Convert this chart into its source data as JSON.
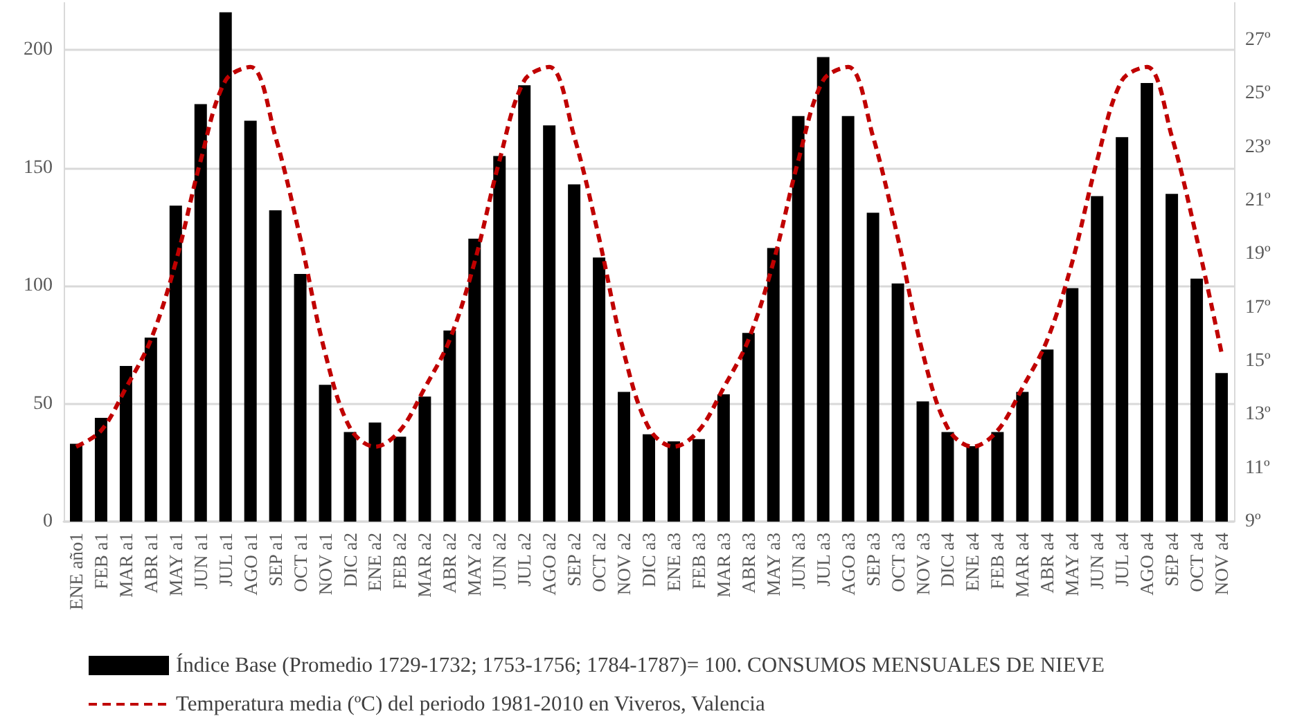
{
  "chart_data": {
    "type": "bar",
    "categories": [
      "ENE año1",
      "FEB a1",
      "MAR a1",
      "ABR a1",
      "MAY a1",
      "JUN a1",
      "JUL a1",
      "AGO a1",
      "SEP a1",
      "OCT a1",
      "NOV a1",
      "DIC a2",
      "ENE a2",
      "FEB a2",
      "MAR a2",
      "ABR a2",
      "MAY a2",
      "JUN a2",
      "JUL a2",
      "AGO a2",
      "SEP a2",
      "OCT a2",
      "NOV a2",
      "DIC a3",
      "ENE a3",
      "FEB a3",
      "MAR a3",
      "ABR a3",
      "MAY a3",
      "JUN a3",
      "JUL a3",
      "AGO a3",
      "SEP a3",
      "OCT a3",
      "NOV a3",
      "DIC a4",
      "ENE a4",
      "FEB a4",
      "MAR a4",
      "ABR a4",
      "MAY a4",
      "JUN a4",
      "JUL a4",
      "AGO a4",
      "SEP a4",
      "OCT a4",
      "NOV a4"
    ],
    "series": [
      {
        "name": "Índice Base (Promedio 1729-1732; 1753-1756; 1784-1787)= 100. CONSUMOS MENSUALES DE NIEVE",
        "color": "#000000",
        "values": [
          33,
          44,
          66,
          78,
          134,
          177,
          216,
          170,
          132,
          105,
          58,
          38,
          42,
          36,
          53,
          81,
          120,
          155,
          185,
          168,
          143,
          112,
          55,
          37,
          34,
          35,
          54,
          80,
          116,
          172,
          197,
          172,
          131,
          101,
          51,
          38,
          32,
          38,
          55,
          73,
          99,
          138,
          163,
          186,
          139,
          103,
          63
        ]
      },
      {
        "name": "Temperatura media (ºC) del periodo 1981-2010 en Viveros, Valencia",
        "type": "line",
        "axis": "y2",
        "color": "#c00000",
        "line_style": "dashed",
        "marker": "none",
        "values": [
          11.8,
          12.4,
          14.0,
          15.8,
          18.7,
          22.5,
          25.5,
          26.0,
          23.4,
          19.6,
          15.3,
          12.5,
          11.8,
          12.4,
          14.0,
          15.8,
          18.7,
          22.5,
          25.5,
          26.0,
          23.4,
          19.6,
          15.3,
          12.5,
          11.8,
          12.4,
          14.0,
          15.8,
          18.7,
          22.5,
          25.5,
          26.0,
          23.4,
          19.6,
          15.3,
          12.5,
          11.8,
          12.4,
          14.0,
          15.8,
          18.7,
          22.5,
          25.5,
          26.0,
          23.4,
          19.6,
          15.3
        ]
      }
    ],
    "ylim": [
      0,
      220
    ],
    "yticks": [
      0,
      50,
      100,
      150,
      200
    ],
    "y2lim": [
      9,
      28.4
    ],
    "y2ticks": [
      {
        "value": 9,
        "label": "9º"
      },
      {
        "value": 11,
        "label": "11º"
      },
      {
        "value": 13,
        "label": "13º"
      },
      {
        "value": 15,
        "label": "15º"
      },
      {
        "value": 17,
        "label": "17º"
      },
      {
        "value": 19,
        "label": "19º"
      },
      {
        "value": 21,
        "label": "21º"
      },
      {
        "value": 23,
        "label": "23º"
      },
      {
        "value": 25,
        "label": "25º"
      },
      {
        "value": 27,
        "label": "27º"
      }
    ],
    "grid": "y",
    "legend": "bottom left"
  }
}
